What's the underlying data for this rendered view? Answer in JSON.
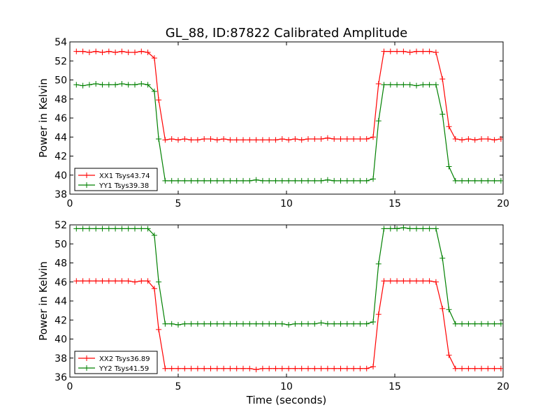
{
  "figure": {
    "title": "GL_88, ID:87822 Calibrated Amplitude",
    "xlabel": "Time (seconds)"
  },
  "colors": {
    "series_red": "#ff0000",
    "series_green": "#008000"
  },
  "chart_data": [
    {
      "type": "line",
      "title": "GL_88, ID:87822 Calibrated Amplitude",
      "xlabel": "",
      "ylabel": "Power in Kelvin",
      "xlim": [
        0,
        20
      ],
      "ylim": [
        38,
        54
      ],
      "xticks": [
        0,
        5,
        10,
        15,
        20
      ],
      "yticks": [
        38,
        40,
        42,
        44,
        46,
        48,
        50,
        52,
        54
      ],
      "grid": false,
      "legend": "lower-left",
      "x": [
        0.3,
        0.6,
        0.9,
        1.2,
        1.5,
        1.8,
        2.1,
        2.4,
        2.7,
        3.0,
        3.3,
        3.6,
        3.9,
        4.1,
        4.4,
        4.7,
        5.0,
        5.3,
        5.6,
        5.9,
        6.2,
        6.5,
        6.8,
        7.1,
        7.4,
        7.7,
        8.0,
        8.3,
        8.6,
        8.9,
        9.2,
        9.5,
        9.8,
        10.1,
        10.4,
        10.7,
        11.0,
        11.3,
        11.6,
        11.9,
        12.2,
        12.5,
        12.8,
        13.1,
        13.4,
        13.7,
        14.0,
        14.25,
        14.5,
        14.8,
        15.1,
        15.4,
        15.7,
        16.0,
        16.3,
        16.6,
        16.9,
        17.2,
        17.5,
        17.8,
        18.1,
        18.4,
        18.7,
        19.0,
        19.3,
        19.6,
        19.9
      ],
      "series": [
        {
          "name": "XX1 Tsys43.74",
          "color": "#ff0000",
          "values": [
            53.0,
            53.0,
            52.9,
            53.0,
            52.9,
            53.0,
            52.9,
            53.0,
            52.9,
            52.9,
            53.0,
            52.9,
            52.3,
            47.9,
            43.7,
            43.8,
            43.7,
            43.8,
            43.7,
            43.7,
            43.8,
            43.8,
            43.7,
            43.8,
            43.7,
            43.7,
            43.7,
            43.7,
            43.7,
            43.7,
            43.7,
            43.7,
            43.8,
            43.7,
            43.8,
            43.7,
            43.8,
            43.8,
            43.8,
            43.9,
            43.8,
            43.8,
            43.8,
            43.8,
            43.8,
            43.8,
            44.0,
            49.6,
            53.0,
            53.0,
            53.0,
            53.0,
            52.9,
            53.0,
            53.0,
            53.0,
            52.9,
            50.1,
            45.1,
            43.8,
            43.7,
            43.8,
            43.7,
            43.8,
            43.8,
            43.7,
            43.8
          ]
        },
        {
          "name": "YY1 Tsys39.38",
          "color": "#008000",
          "values": [
            49.5,
            49.4,
            49.5,
            49.6,
            49.5,
            49.5,
            49.5,
            49.6,
            49.5,
            49.5,
            49.6,
            49.5,
            48.8,
            43.8,
            39.4,
            39.4,
            39.4,
            39.4,
            39.4,
            39.4,
            39.4,
            39.4,
            39.4,
            39.4,
            39.4,
            39.4,
            39.4,
            39.4,
            39.5,
            39.4,
            39.4,
            39.4,
            39.4,
            39.4,
            39.4,
            39.4,
            39.4,
            39.4,
            39.4,
            39.5,
            39.4,
            39.4,
            39.4,
            39.4,
            39.4,
            39.4,
            39.6,
            45.7,
            49.5,
            49.5,
            49.5,
            49.5,
            49.5,
            49.4,
            49.5,
            49.5,
            49.5,
            46.4,
            40.9,
            39.4,
            39.4,
            39.4,
            39.4,
            39.4,
            39.4,
            39.4,
            39.4
          ]
        }
      ]
    },
    {
      "type": "line",
      "title": "",
      "xlabel": "Time (seconds)",
      "ylabel": "Power in Kelvin",
      "xlim": [
        0,
        20
      ],
      "ylim": [
        36,
        52
      ],
      "xticks": [
        0,
        5,
        10,
        15,
        20
      ],
      "yticks": [
        36,
        38,
        40,
        42,
        44,
        46,
        48,
        50,
        52
      ],
      "grid": false,
      "legend": "lower-left",
      "x": [
        0.3,
        0.6,
        0.9,
        1.2,
        1.5,
        1.8,
        2.1,
        2.4,
        2.7,
        3.0,
        3.3,
        3.6,
        3.9,
        4.1,
        4.4,
        4.7,
        5.0,
        5.3,
        5.6,
        5.9,
        6.2,
        6.5,
        6.8,
        7.1,
        7.4,
        7.7,
        8.0,
        8.3,
        8.6,
        8.9,
        9.2,
        9.5,
        9.8,
        10.1,
        10.4,
        10.7,
        11.0,
        11.3,
        11.6,
        11.9,
        12.2,
        12.5,
        12.8,
        13.1,
        13.4,
        13.7,
        14.0,
        14.25,
        14.5,
        14.8,
        15.1,
        15.4,
        15.7,
        16.0,
        16.3,
        16.6,
        16.9,
        17.2,
        17.5,
        17.8,
        18.1,
        18.4,
        18.7,
        19.0,
        19.3,
        19.6,
        19.9
      ],
      "series": [
        {
          "name": "XX2 Tsys36.89",
          "color": "#ff0000",
          "values": [
            46.1,
            46.1,
            46.1,
            46.1,
            46.1,
            46.1,
            46.1,
            46.1,
            46.1,
            46.0,
            46.1,
            46.1,
            45.3,
            41.0,
            36.9,
            36.9,
            36.9,
            36.9,
            36.9,
            36.9,
            36.9,
            36.9,
            36.9,
            36.9,
            36.9,
            36.9,
            36.9,
            36.9,
            36.8,
            36.9,
            36.9,
            36.9,
            36.9,
            36.9,
            36.9,
            36.9,
            36.9,
            36.9,
            36.9,
            36.9,
            36.9,
            36.9,
            36.9,
            36.9,
            36.9,
            36.9,
            37.1,
            42.6,
            46.1,
            46.1,
            46.1,
            46.1,
            46.1,
            46.1,
            46.1,
            46.1,
            46.0,
            43.2,
            38.3,
            36.9,
            36.9,
            36.9,
            36.9,
            36.9,
            36.9,
            36.9,
            36.9
          ]
        },
        {
          "name": "YY2 Tsys41.59",
          "color": "#008000",
          "values": [
            51.6,
            51.6,
            51.6,
            51.6,
            51.6,
            51.6,
            51.6,
            51.6,
            51.6,
            51.6,
            51.6,
            51.6,
            50.9,
            46.0,
            41.6,
            41.6,
            41.5,
            41.6,
            41.6,
            41.6,
            41.6,
            41.6,
            41.6,
            41.6,
            41.6,
            41.6,
            41.6,
            41.6,
            41.6,
            41.6,
            41.6,
            41.6,
            41.6,
            41.5,
            41.6,
            41.6,
            41.6,
            41.6,
            41.7,
            41.6,
            41.6,
            41.6,
            41.6,
            41.6,
            41.6,
            41.6,
            41.8,
            47.9,
            51.6,
            51.6,
            51.6,
            51.7,
            51.6,
            51.6,
            51.6,
            51.6,
            51.6,
            48.5,
            43.1,
            41.6,
            41.6,
            41.6,
            41.6,
            41.6,
            41.6,
            41.6,
            41.6
          ]
        }
      ]
    }
  ]
}
